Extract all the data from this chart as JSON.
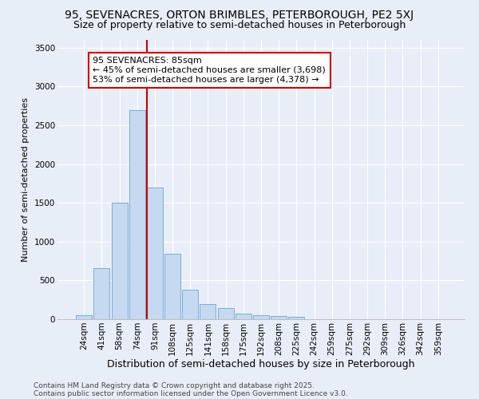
{
  "title1": "95, SEVENACRES, ORTON BRIMBLES, PETERBOROUGH, PE2 5XJ",
  "title2": "Size of property relative to semi-detached houses in Peterborough",
  "xlabel": "Distribution of semi-detached houses by size in Peterborough",
  "ylabel": "Number of semi-detached properties",
  "categories": [
    "24sqm",
    "41sqm",
    "58sqm",
    "74sqm",
    "91sqm",
    "108sqm",
    "125sqm",
    "141sqm",
    "158sqm",
    "175sqm",
    "192sqm",
    "208sqm",
    "225sqm",
    "242sqm",
    "259sqm",
    "275sqm",
    "292sqm",
    "309sqm",
    "326sqm",
    "342sqm",
    "359sqm"
  ],
  "values": [
    50,
    660,
    1500,
    2690,
    1700,
    840,
    380,
    200,
    140,
    70,
    50,
    40,
    30,
    0,
    0,
    0,
    0,
    0,
    0,
    0,
    0
  ],
  "bar_color": "#c5d9f0",
  "bar_edgecolor": "#7aadd4",
  "red_line_x": 3.55,
  "annotation_text": "95 SEVENACRES: 85sqm\n← 45% of semi-detached houses are smaller (3,698)\n53% of semi-detached houses are larger (4,378) →",
  "annotation_box_color": "#ffffff",
  "annotation_border_color": "#cc0000",
  "ylim": [
    0,
    3600
  ],
  "yticks": [
    0,
    500,
    1000,
    1500,
    2000,
    2500,
    3000,
    3500
  ],
  "background_color": "#e8eef8",
  "grid_color": "#ffffff",
  "footer1": "Contains HM Land Registry data © Crown copyright and database right 2025.",
  "footer2": "Contains public sector information licensed under the Open Government Licence v3.0.",
  "title1_fontsize": 10,
  "title2_fontsize": 9,
  "xlabel_fontsize": 9,
  "ylabel_fontsize": 8,
  "tick_fontsize": 7.5,
  "annotation_fontsize": 8,
  "footer_fontsize": 6.5
}
